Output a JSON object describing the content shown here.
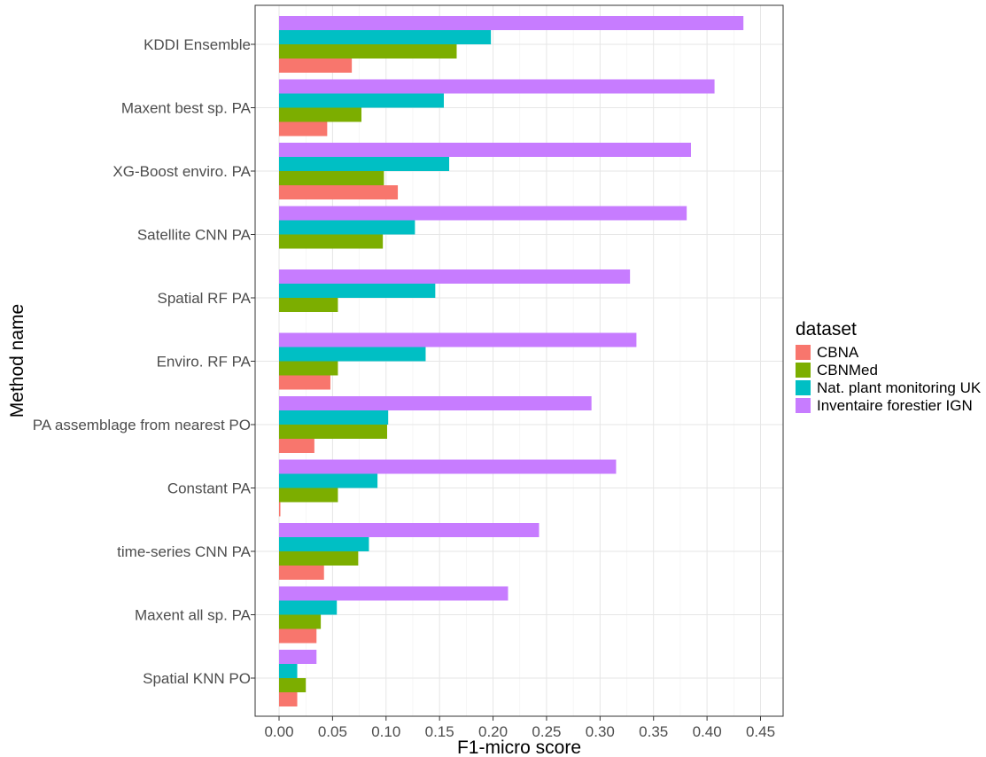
{
  "chart_data": {
    "type": "bar",
    "orientation": "horizontal",
    "title": "",
    "xlabel": "F1-micro score",
    "ylabel": "Method name",
    "xlim": [
      0,
      0.45
    ],
    "x_ticks": [
      "0.00",
      "0.05",
      "0.10",
      "0.15",
      "0.20",
      "0.25",
      "0.30",
      "0.35",
      "0.40",
      "0.45"
    ],
    "grid": true,
    "legend_title": "dataset",
    "legend_position": "right",
    "categories": [
      "KDDI Ensemble",
      "Maxent best sp. PA",
      "XG-Boost enviro. PA",
      "Satellite CNN PA",
      "Spatial RF PA",
      "Enviro. RF PA",
      "PA assemblage from nearest PO",
      "Constant PA",
      "time-series CNN PA",
      "Maxent all sp. PA",
      "Spatial KNN PO"
    ],
    "series": [
      {
        "name": "CBNA",
        "color": "#F8766D",
        "values": [
          0.068,
          0.045,
          0.111,
          null,
          null,
          0.048,
          0.033,
          0.001,
          0.042,
          0.035,
          0.017
        ]
      },
      {
        "name": "CBNMed",
        "color": "#7CAE00",
        "values": [
          0.166,
          0.077,
          0.098,
          0.097,
          0.055,
          0.055,
          0.101,
          0.055,
          0.074,
          0.039,
          0.025
        ]
      },
      {
        "name": "Nat. plant monitoring UK",
        "color": "#00BFC4",
        "values": [
          0.198,
          0.154,
          0.159,
          0.127,
          0.146,
          0.137,
          0.102,
          0.092,
          0.084,
          0.054,
          0.017
        ]
      },
      {
        "name": "Inventaire forestier IGN",
        "color": "#C77CFF",
        "values": [
          0.434,
          0.407,
          0.385,
          0.381,
          0.328,
          0.334,
          0.292,
          0.315,
          0.243,
          0.214,
          0.035
        ]
      }
    ]
  }
}
